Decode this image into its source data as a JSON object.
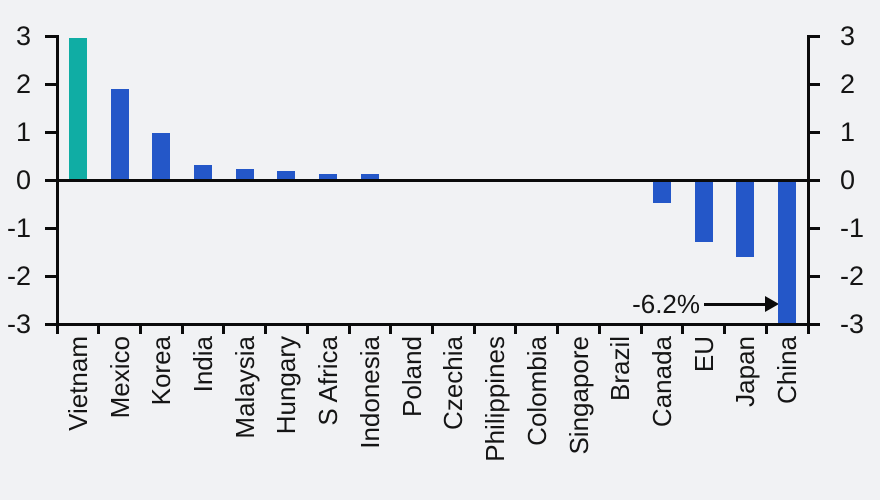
{
  "colors": {
    "background": "#F1F2F4",
    "bar_default": "#2457C8",
    "bar_highlight": "#10ADA4",
    "axis": "#0b0b0b"
  },
  "chart_data": {
    "type": "bar",
    "title": "",
    "xlabel": "",
    "ylabel": "",
    "categories": [
      "Vietnam",
      "Mexico",
      "Korea",
      "India",
      "Malaysia",
      "Hungary",
      "S Africa",
      "Indonesia",
      "Poland",
      "Czechia",
      "Philippines",
      "Colombia",
      "Singapore",
      "Brazil",
      "Canada",
      "EU",
      "Japan",
      "China"
    ],
    "values": [
      2.95,
      1.9,
      0.97,
      0.31,
      0.22,
      0.18,
      0.12,
      0.12,
      0,
      0,
      0,
      0,
      0,
      0,
      -0.47,
      -1.3,
      -1.6,
      -6.2
    ],
    "highlight_index": 0,
    "ylim": [
      -3,
      3
    ],
    "yticks": [
      3,
      2,
      1,
      0,
      -1,
      -2,
      -3
    ],
    "yticks_left": [
      "3",
      "2",
      "1",
      "0",
      "-1",
      "-2",
      "-3"
    ],
    "yticks_right": [
      "3",
      "2",
      "1",
      "0",
      "-1",
      "-2",
      "-3"
    ],
    "dual_axis": true,
    "grid": false,
    "legend": null,
    "annotation": {
      "text": "-6.2%",
      "target_category": "China",
      "note": "value clipped at axis minimum -3"
    }
  }
}
